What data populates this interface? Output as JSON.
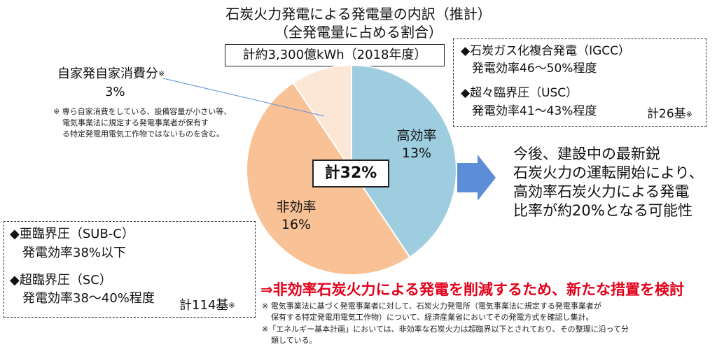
{
  "title_line1": "石炭火力発電による発電量の内訳（推計）",
  "title_line2": "（全発電量に占める割合）",
  "total_generation": "計約3,300億kWh（2018年度）",
  "chart_data": {
    "type": "pie",
    "slices": [
      {
        "name": "高効率",
        "value": 13,
        "label": "13%",
        "color": "#9ecde0"
      },
      {
        "name": "非効率",
        "value": 16,
        "label": "16%",
        "color": "#f9c296"
      },
      {
        "name": "自家発自家消費分",
        "value": 3,
        "label": "3%",
        "color": "#fce7d6"
      }
    ],
    "total_label": "計32%"
  },
  "self_consumption": {
    "label": "自家発自家消費分",
    "mark": "※",
    "value": "3%",
    "note_lines": [
      "※ 専ら自家消費をしている、設備容量が小さい等、",
      "電気事業法に規定する発電事業者が保有す",
      "る特定発電用電気工作物ではないものを含む。"
    ]
  },
  "high_eff_box": {
    "items": [
      {
        "name": "◆石炭ガス化複合発電（IGCC）",
        "eff": "発電効率46〜50%程度"
      },
      {
        "name": "◆超々臨界圧（USC）",
        "eff": "発電効率41〜43%程度"
      }
    ],
    "count": "計26基",
    "mark": "※"
  },
  "low_eff_box": {
    "items": [
      {
        "name": "◆亜臨界圧（SUB-C）",
        "eff": "発電効率38%以下"
      },
      {
        "name": "◆超臨界圧（SC）",
        "eff": "発電効率38〜40%程度"
      }
    ],
    "count": "計114基",
    "mark": "※"
  },
  "callout_lines": [
    "今後、建設中の最新鋭",
    "石炭火力の運転開始により、",
    "高効率石炭火力による発電",
    "比率が約20%となる可能性"
  ],
  "measure": "⇒非効率石炭火力による発電を削減するため、新たな措置を検討",
  "footnotes": [
    "※ 電気事業法に基づく発電事業者に対して、石炭火力発電所（電気事業法に規定する発電事業者が",
    "保有する特定発電用電気工作物）について、経済産業省においてその発電方式を確認し集計。",
    "※「エネルギー基本計画」においては、非効率な石炭火力は超臨界以下とされており、その整理に沿って分",
    "類している。"
  ],
  "colors": {
    "arrow": "#5b8ed6",
    "accent_red": "#e3001b",
    "leader": "#5b8ed6"
  }
}
